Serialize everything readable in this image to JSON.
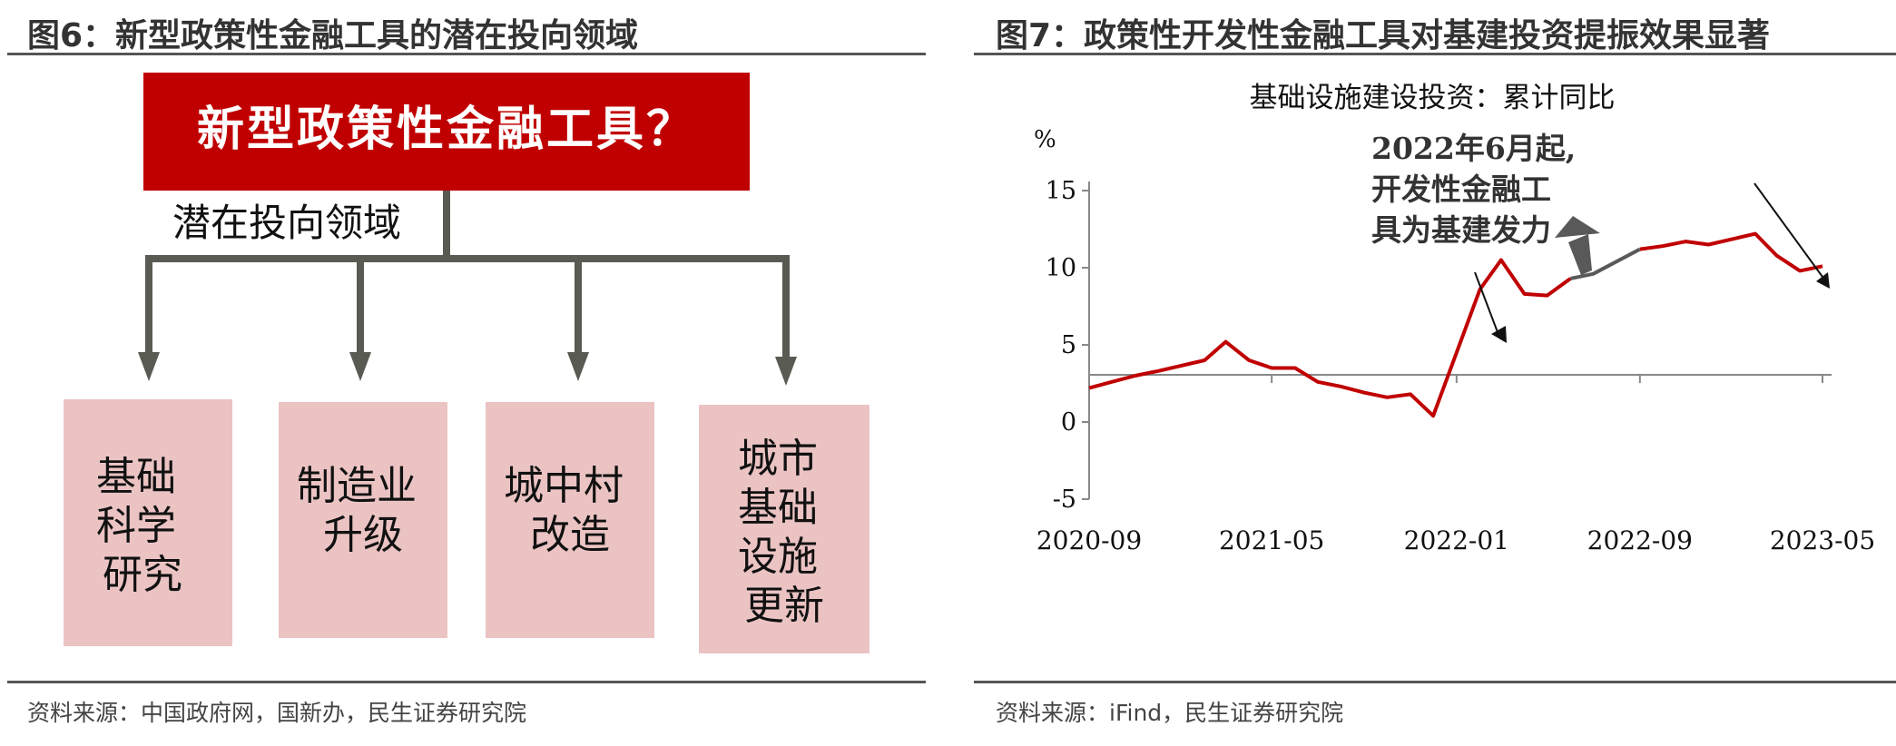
{
  "left": {
    "figure_title": "图6：新型政策性金融工具的潜在投向领域",
    "header_box": "新型政策性金融工具？",
    "branch_label": "潜在投向领域",
    "boxes": [
      {
        "lines": [
          "基础",
          "科学",
          "研究"
        ]
      },
      {
        "lines": [
          "制造业",
          "升级"
        ]
      },
      {
        "lines": [
          "城中村",
          "改造"
        ]
      },
      {
        "lines": [
          "城市",
          "基础",
          "设施",
          "更新"
        ]
      }
    ],
    "source": "资料来源：中国政府网，国新办，民生证券研究院",
    "colors": {
      "header": "#c00000",
      "box": "#ebc3c3",
      "arrow": "#595a52"
    }
  },
  "right": {
    "figure_title": "图7：政策性开发性金融工具对基建投资提振效果显著",
    "source": "资料来源：iFind，民生证券研究院",
    "chart_data": {
      "type": "line",
      "title": "基础设施建设投资：累计同比",
      "ylabel": "%",
      "ylim": [
        -5,
        15
      ],
      "yticks": [
        -5,
        0,
        5,
        10,
        15
      ],
      "xtick_labels": [
        "2020-09",
        "2021-05",
        "2022-01",
        "2022-09",
        "2023-05"
      ],
      "annotation": {
        "lines": [
          "2022年6月起,",
          "开发性金融工",
          "具为基建发力"
        ]
      },
      "x": [
        "2020-09",
        "2020-10",
        "2020-11",
        "2020-12",
        "2021-02",
        "2021-03",
        "2021-04",
        "2021-05",
        "2021-06",
        "2021-07",
        "2021-08",
        "2021-09",
        "2021-10",
        "2021-11",
        "2021-12",
        "2022-02",
        "2022-03",
        "2022-04",
        "2022-05",
        "2022-06",
        "2022-07",
        "2022-08",
        "2022-09",
        "2022-10",
        "2022-11",
        "2022-12",
        "2023-02",
        "2023-03",
        "2023-04",
        "2023-05"
      ],
      "values": [
        2.2,
        2.6,
        3.0,
        3.3,
        4.0,
        5.2,
        4.0,
        3.5,
        3.5,
        2.6,
        2.3,
        1.9,
        1.6,
        1.8,
        0.4,
        8.6,
        10.5,
        8.3,
        8.2,
        9.3,
        9.6,
        10.4,
        11.2,
        11.4,
        11.7,
        11.5,
        12.2,
        10.8,
        9.8,
        10.1
      ],
      "colors": {
        "main": "#c00000",
        "highlight": "#595959"
      },
      "highlight_range": [
        "2022-06",
        "2022-09"
      ],
      "grid": false
    }
  }
}
